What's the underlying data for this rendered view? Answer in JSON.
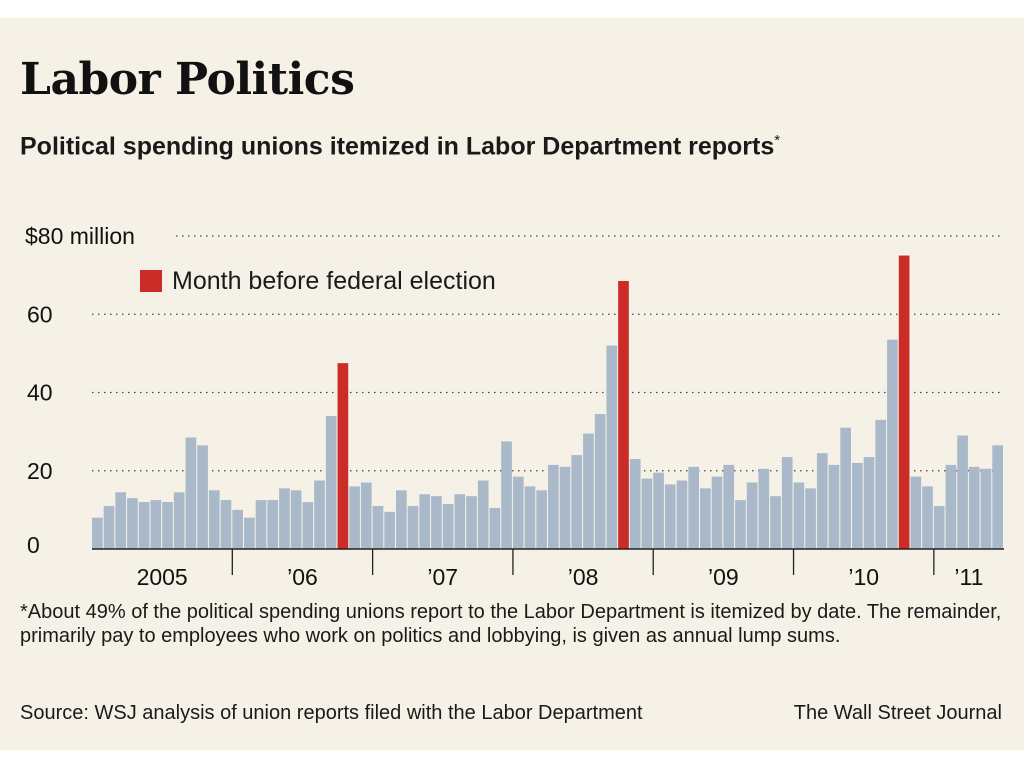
{
  "title": "Labor Politics",
  "subtitle": "Political spending unions itemized in Labor Department reports",
  "subtitle_marker": "*",
  "footnote": "*About 49% of the political spending unions report to the Labor Department is itemized by date. The remainder, primarily pay to employees who work on politics and lobbying, is given as annual lump sums.",
  "source": "Source: WSJ analysis of union reports filed with the Labor Department",
  "credit": "The Wall Street Journal",
  "colors": {
    "background": "#f5f1e6",
    "regular_bar": "#a9b9c9",
    "election_bar": "#cc2c28"
  },
  "chart_data": {
    "type": "bar",
    "legend": [
      {
        "label": "Month before federal election",
        "color": "#cc2c28"
      }
    ],
    "legend_position": "top-left",
    "y_tick_labels": [
      "$80 million",
      "60",
      "40",
      "20",
      "0"
    ],
    "y_ticks": [
      80,
      60,
      40,
      20,
      0
    ],
    "ylim": [
      0,
      80
    ],
    "grid": true,
    "x_tick_labels": [
      "2005",
      "’06",
      "’07",
      "’08",
      "’09",
      "’10",
      "’11"
    ],
    "start": "2005-01",
    "end": "2011-06",
    "election_months": [
      "2006-10",
      "2008-10",
      "2010-10"
    ],
    "values": [
      8,
      11,
      14.5,
      13,
      12,
      12.5,
      12,
      14.5,
      28.5,
      26.5,
      15,
      12.5,
      10,
      8,
      12.5,
      12.5,
      15.5,
      15,
      12,
      17.5,
      34,
      47.5,
      16,
      17,
      11,
      9.5,
      15,
      11,
      14,
      13.5,
      11.5,
      14,
      13.5,
      17.5,
      10.5,
      27.5,
      18.5,
      16,
      15,
      21.5,
      21,
      24,
      29.5,
      34.5,
      52,
      68.5,
      23,
      18,
      19.5,
      16.5,
      17.5,
      21,
      15.5,
      18.5,
      21.5,
      12.5,
      17,
      20.5,
      13.5,
      23.5,
      17,
      15.5,
      24.5,
      21.5,
      31,
      22,
      23.5,
      33,
      53.5,
      75,
      18.5,
      16,
      11,
      21.5,
      29,
      21,
      20.5,
      26.5
    ]
  }
}
